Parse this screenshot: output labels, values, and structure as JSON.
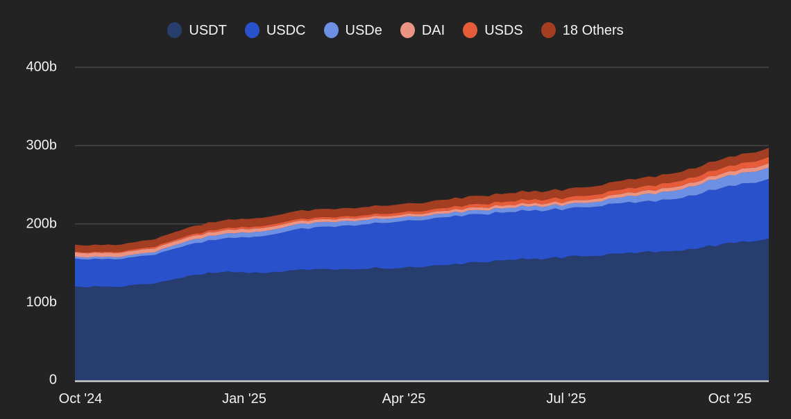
{
  "page": {
    "background_color": "#232323",
    "text_color": "#f2f2f2",
    "gridline_color": "#4e4e4e",
    "axis_line_color": "#cccccc"
  },
  "chart_data": {
    "type": "area",
    "stacked": true,
    "title": "",
    "xlabel": "",
    "ylabel": "",
    "legend_position": "top",
    "grid": "horizontal",
    "ylim": [
      0,
      400
    ],
    "y_gridlines": [
      100,
      200,
      300,
      400
    ],
    "y_tick_labels": [
      "0",
      "100b",
      "200b",
      "300b",
      "400b"
    ],
    "x_tick_labels": [
      "Oct '24",
      "Jan '25",
      "Apr '25",
      "Jul '25",
      "Oct '25"
    ],
    "x_unit": "date",
    "x": [
      "2024-09-28",
      "2024-10-13",
      "2024-10-28",
      "2024-11-12",
      "2024-11-27",
      "2024-12-12",
      "2024-12-27",
      "2025-01-11",
      "2025-01-26",
      "2025-02-10",
      "2025-02-25",
      "2025-03-12",
      "2025-03-27",
      "2025-04-11",
      "2025-04-26",
      "2025-05-11",
      "2025-05-26",
      "2025-06-10",
      "2025-06-25",
      "2025-07-10",
      "2025-07-25",
      "2025-08-09",
      "2025-08-24",
      "2025-09-08",
      "2025-09-23",
      "2025-10-08",
      "2025-10-23"
    ],
    "value_unit": "billions USD",
    "series": [
      {
        "name": "USDT",
        "color": "#263d6e",
        "values": [
          119.5,
          120,
          120.5,
          124.5,
          131,
          137,
          139,
          137.5,
          139.5,
          142,
          142.5,
          143.5,
          144,
          145,
          148.5,
          150.5,
          152.5,
          155,
          156.5,
          158.5,
          161.5,
          163.5,
          165,
          167.5,
          172.5,
          177,
          181.5
        ]
      },
      {
        "name": "USDC",
        "color": "#2a51cc",
        "values": [
          35.5,
          35,
          35.5,
          37,
          39.5,
          41.5,
          43.5,
          46.5,
          50.5,
          54,
          55.5,
          57,
          59.5,
          60,
          61,
          61,
          61.5,
          61.5,
          61.5,
          62,
          63.5,
          64.5,
          65.5,
          67.5,
          71.5,
          74,
          76
        ]
      },
      {
        "name": "USDe",
        "color": "#6d90e5",
        "values": [
          2.6,
          2.7,
          3,
          3.5,
          4.8,
          5.6,
          5.9,
          6,
          6.2,
          6.1,
          5.9,
          5.5,
          5.2,
          4.9,
          4.8,
          5,
          5.3,
          5.6,
          5.3,
          5.5,
          6.5,
          8.5,
          10,
          11.5,
          13,
          14,
          14.5
        ]
      },
      {
        "name": "DAI",
        "color": "#ec9484",
        "values": [
          5.3,
          5.1,
          5,
          4.8,
          4.7,
          4.6,
          4.5,
          4.4,
          4,
          3.6,
          3.4,
          3.3,
          3.2,
          3.3,
          3.5,
          3.6,
          3.6,
          3.5,
          3.6,
          3.7,
          4.2,
          4.4,
          4.5,
          4.6,
          4.7,
          5,
          5.3
        ]
      },
      {
        "name": "USDS",
        "color": "#e65b38",
        "values": [
          1,
          1.3,
          1.6,
          2,
          2.2,
          2.4,
          2.6,
          2.6,
          2.6,
          2.6,
          2.7,
          2.9,
          3.1,
          3.4,
          3.8,
          4.2,
          4.6,
          5,
          5.2,
          5.3,
          5.5,
          5.8,
          6.2,
          6.6,
          7,
          7.6,
          8
        ]
      },
      {
        "name": "18 Others",
        "color": "#a33e23",
        "values": [
          8.8,
          8.9,
          9,
          9.5,
          10,
          10.3,
          10.4,
          10.5,
          10.6,
          10.5,
          10.4,
          10.4,
          10.4,
          10.4,
          10.5,
          10.5,
          10.4,
          10.4,
          10.6,
          10.8,
          11,
          11.2,
          11.3,
          11.4,
          11.5,
          11.5,
          11.5
        ]
      }
    ]
  }
}
